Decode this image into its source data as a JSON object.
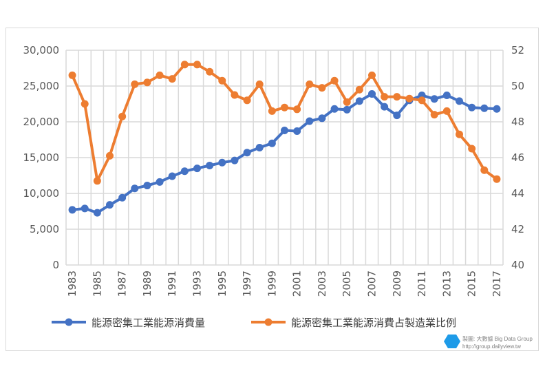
{
  "chart_data": {
    "type": "line",
    "title": "",
    "x": [
      1983,
      1984,
      1985,
      1986,
      1987,
      1988,
      1989,
      1990,
      1991,
      1992,
      1993,
      1994,
      1995,
      1996,
      1997,
      1998,
      1999,
      2000,
      2001,
      2002,
      2003,
      2004,
      2005,
      2006,
      2007,
      2008,
      2009,
      2010,
      2011,
      2012,
      2013,
      2014,
      2015,
      2016,
      2017
    ],
    "x_tick_labels": [
      "1983",
      "1985",
      "1987",
      "1989",
      "1991",
      "1993",
      "1995",
      "1997",
      "1999",
      "2001",
      "2003",
      "2005",
      "2007",
      "2009",
      "2011",
      "2013",
      "2015",
      "2017"
    ],
    "y_left": {
      "ylim": [
        0,
        30000
      ],
      "ticks": [
        "0",
        "5,000",
        "10,000",
        "15,000",
        "20,000",
        "25,000",
        "30,000"
      ]
    },
    "y_right": {
      "ylim": [
        40,
        52
      ],
      "ticks": [
        "40",
        "42",
        "44",
        "46",
        "48",
        "50",
        "52"
      ]
    },
    "grid": true,
    "legend_placement": "bottom",
    "series": [
      {
        "name": "能源密集工業能源消費量",
        "axis": "left",
        "color": "#4472c4",
        "values": [
          7700,
          7900,
          7300,
          8400,
          9400,
          10700,
          11100,
          11600,
          12400,
          13100,
          13500,
          13900,
          14300,
          14600,
          15700,
          16400,
          17000,
          18800,
          18700,
          20100,
          20500,
          21800,
          21700,
          22900,
          23900,
          22100,
          20900,
          23000,
          23700,
          23200,
          23700,
          22900,
          22000,
          21900,
          21800
        ]
      },
      {
        "name": "能源密集工業能源消費占製造業比例",
        "axis": "right",
        "color": "#ed7d31",
        "values": [
          50.6,
          49.0,
          44.7,
          46.1,
          48.3,
          50.1,
          50.2,
          50.6,
          50.4,
          51.2,
          51.2,
          50.8,
          50.3,
          49.5,
          49.2,
          50.1,
          48.6,
          48.8,
          48.7,
          50.1,
          49.9,
          50.3,
          49.1,
          49.8,
          50.6,
          49.4,
          49.4,
          49.3,
          49.2,
          48.4,
          48.6,
          47.3,
          46.5,
          45.3,
          44.8
        ]
      }
    ]
  },
  "watermark": {
    "line1": "製圖: 大數據 Big Data Group",
    "line2": "http://group.dailyview.tw",
    "logo_color": "#1e9be8"
  }
}
